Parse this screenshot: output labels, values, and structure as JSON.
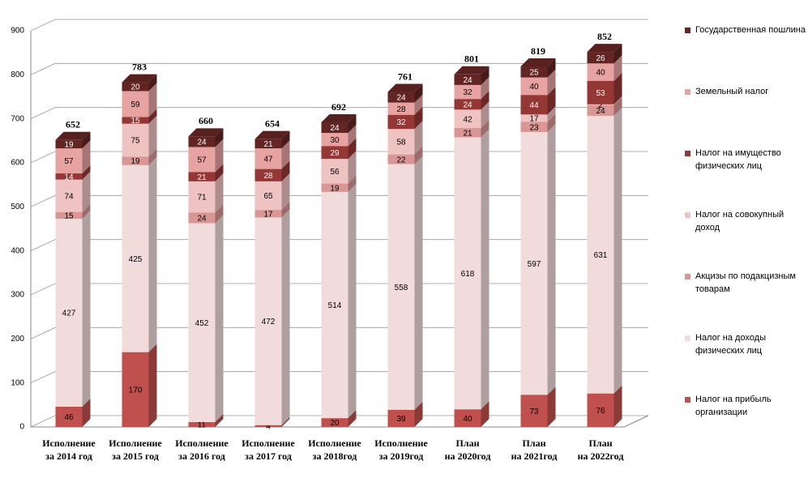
{
  "chart_data": {
    "type": "bar3d-stacked",
    "categories": [
      "Исполнение\nза 2014 год",
      "Исполнение\nза 2015 год",
      "Исполнение\nза 2016 год",
      "Исполнение\nза 2017 год",
      "Исполнение\nза 2018год",
      "Исполнение\nза 2019год",
      "План\nна 2020год",
      "План\nна 2021год",
      "План\nна 2022год"
    ],
    "series": [
      {
        "name": "Налог на прибыль организации",
        "color": "#c0504d",
        "values": [
          46,
          170,
          11,
          4,
          20,
          39,
          40,
          73,
          76
        ]
      },
      {
        "name": "Налог на доходы физических лиц",
        "color": "#f2dcdb",
        "values": [
          427,
          425,
          452,
          472,
          514,
          558,
          618,
          597,
          631
        ]
      },
      {
        "name": "Акцизы по подакцизным товарам",
        "color": "#d99694",
        "values": [
          15,
          19,
          24,
          17,
          19,
          22,
          21,
          23,
          24
        ]
      },
      {
        "name": "Налог на совокупный доход",
        "color": "#efc3c2",
        "values": [
          74,
          75,
          71,
          65,
          56,
          58,
          42,
          17,
          2
        ]
      },
      {
        "name": "Налог на имущество физических лиц",
        "color": "#953735",
        "values": [
          14,
          15,
          21,
          28,
          29,
          32,
          24,
          44,
          53
        ]
      },
      {
        "name": "Земельный налог",
        "color": "#e6a3a2",
        "values": [
          57,
          59,
          57,
          47,
          30,
          28,
          32,
          40,
          40
        ]
      },
      {
        "name": "Государственная пошлина",
        "color": "#632523",
        "values": [
          19,
          20,
          24,
          21,
          24,
          24,
          24,
          25,
          26
        ]
      }
    ],
    "totals": [
      652,
      783,
      660,
      654,
      692,
      761,
      801,
      819,
      852
    ],
    "ylim": [
      0,
      900
    ],
    "yticks": [
      0,
      100,
      200,
      300,
      400,
      500,
      600,
      700,
      800,
      900
    ],
    "grid": true
  }
}
